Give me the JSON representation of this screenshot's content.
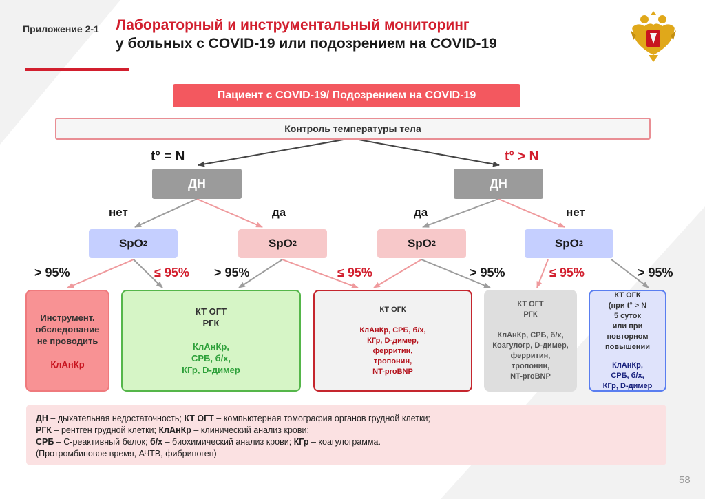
{
  "header": {
    "appendix": "Приложение 2-1",
    "title_line1": "Лабораторный и инструментальный мониторинг",
    "title_line2": "у больных с COVID-19 или подозрением на COVID-19"
  },
  "emblem_icon": "double-headed-eagle-emblem-icon",
  "colors": {
    "accent_red": "#d21f2e",
    "patient_box": "#f3585f",
    "dn_box": "#9b9b9b",
    "spo2_blue": "#c5cfff",
    "spo2_pink": "#f7c8c9",
    "arrow_grey": "#9d9d9d",
    "arrow_pink": "#ef9a9d"
  },
  "flow": {
    "patient": "Пациент с COVID-19/ Подозрением на COVID-19",
    "temperature": "Контроль температуры тела",
    "cond_normal": "t° = N",
    "cond_high": "t° > N",
    "dn_label": "ДН",
    "answer_no": "нет",
    "answer_yes": "да",
    "spo2_base": "SpO",
    "spo2_sub": "2",
    "thr_above": "> 95%",
    "thr_below": "≤ 95%"
  },
  "results": {
    "box1": {
      "line1": "Инструмент.",
      "line2": "обследование",
      "line3": "не проводить",
      "labs": "КлАнКр"
    },
    "box2": {
      "line1": "КТ ОГТ",
      "line2": "РГК",
      "labs1": "КлАнКр,",
      "labs2": "СРБ, б/х,",
      "labs3": "КГр, D-димер"
    },
    "box3": {
      "line1": "КТ ОГК",
      "labs1": "КлАнКр, СРБ, б/х,",
      "labs2": "КГр, D-димер,",
      "labs3": "ферритин,",
      "labs4": "тропонин,",
      "labs5": "NT-proBNP"
    },
    "box4": {
      "line1": "КТ ОГТ",
      "line2": "РГК",
      "labs1": "КлАнКр, СРБ, б/х,",
      "labs2": "Коагулогр, D-димер,",
      "labs3": "ферритин,",
      "labs4": "тропонин,",
      "labs5": "NT-proBNP"
    },
    "box5": {
      "line1": "КТ ОГК",
      "line2": "(при t° > N",
      "line3": "5 суток",
      "line4": "или при",
      "line5": "повторном",
      "line6": "повышении",
      "labs1": "КлАнКр,",
      "labs2": "СРБ, б/х,",
      "labs3": "КГр, D-димер"
    }
  },
  "legend": {
    "l1_t1": "ДН",
    "l1_t2": " – дыхательная недостаточность; ",
    "l1_t3": "КТ ОГТ",
    "l1_t4": " – компьютерная томография органов грудной клетки;",
    "l2_t1": "РГК",
    "l2_t2": " – рентген грудной клетки; ",
    "l2_t3": "КлАнКр",
    "l2_t4": " – клинический анализ крови;",
    "l3_t1": "СРБ",
    "l3_t2": " – С-реактивный белок; ",
    "l3_t3": "б/х",
    "l3_t4": " – биохимический анализ крови; ",
    "l3_t5": "КГр",
    "l3_t6": " – коагулограмма.",
    "l4": "(Протромбиновое время, АЧТВ, фибриноген)"
  },
  "page_number": "58"
}
